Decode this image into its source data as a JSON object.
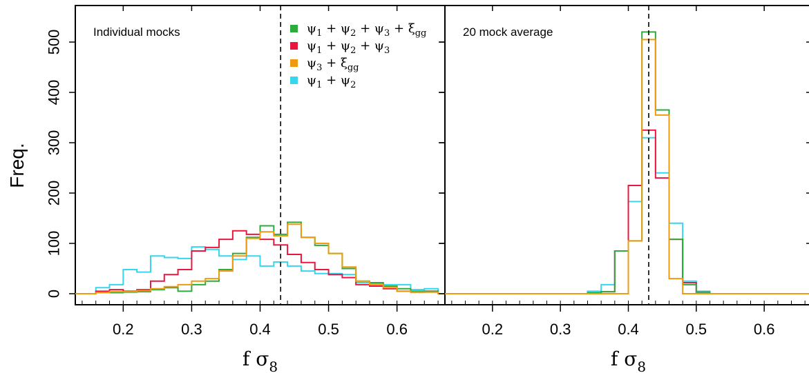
{
  "figure": {
    "ylabel": "Freq.",
    "xlabel_main": "f σ",
    "xlabel_sub": "8"
  },
  "legend": [
    {
      "name": "ψ1 + ψ2 + ψ3 + ξgg",
      "color": "#2eaa3f"
    },
    {
      "name": "ψ1 + ψ2 + ψ3",
      "color": "#e8173e"
    },
    {
      "name": "ψ3 + ξgg",
      "color": "#ef9b10"
    },
    {
      "name": "ψ1 + ψ2",
      "color": "#36d6ee"
    }
  ],
  "chart_data": [
    {
      "type": "histogram",
      "panel_title": "Individual mocks",
      "xlabel": "f σ8",
      "ylabel": "Freq.",
      "xlim": [
        0.13,
        0.67
      ],
      "ylim": [
        0,
        560
      ],
      "x_ticks": [
        0.2,
        0.3,
        0.4,
        0.5,
        0.6
      ],
      "y_ticks": [
        0,
        100,
        200,
        300,
        400,
        500
      ],
      "reference_line": 0.43,
      "bin_edges": [
        0.13,
        0.16,
        0.18,
        0.2,
        0.22,
        0.24,
        0.26,
        0.28,
        0.3,
        0.32,
        0.34,
        0.36,
        0.38,
        0.4,
        0.42,
        0.44,
        0.46,
        0.48,
        0.5,
        0.52,
        0.54,
        0.56,
        0.58,
        0.6,
        0.62,
        0.64,
        0.66,
        0.67
      ],
      "series": [
        {
          "name": "ψ1 + ψ2 + ψ3 + ξgg",
          "color": "#2eaa3f",
          "values": [
            0,
            2,
            2,
            3,
            4,
            8,
            12,
            5,
            18,
            25,
            48,
            80,
            112,
            135,
            118,
            142,
            112,
            96,
            80,
            50,
            25,
            22,
            15,
            10,
            5,
            4,
            0
          ]
        },
        {
          "name": "ψ1 + ψ2 + ψ3",
          "color": "#e8173e",
          "values": [
            0,
            5,
            8,
            5,
            8,
            25,
            38,
            48,
            85,
            92,
            108,
            125,
            118,
            108,
            97,
            78,
            62,
            48,
            38,
            32,
            18,
            15,
            10,
            5,
            3,
            5,
            0
          ]
        },
        {
          "name": "ψ3 + ξgg",
          "color": "#ef9b10",
          "values": [
            0,
            2,
            4,
            4,
            6,
            10,
            14,
            18,
            25,
            30,
            45,
            75,
            110,
            123,
            115,
            138,
            112,
            100,
            80,
            53,
            25,
            18,
            12,
            5,
            3,
            3,
            0
          ]
        },
        {
          "name": "ψ1 + ψ2",
          "color": "#36d6ee",
          "values": [
            0,
            12,
            18,
            48,
            43,
            75,
            72,
            70,
            93,
            88,
            75,
            68,
            75,
            55,
            63,
            55,
            45,
            40,
            40,
            38,
            22,
            20,
            18,
            18,
            8,
            10,
            0
          ]
        }
      ]
    },
    {
      "type": "histogram",
      "panel_title": "20 mock average",
      "xlabel": "f σ8",
      "ylabel": "Freq.",
      "xlim": [
        0.13,
        0.67
      ],
      "ylim": [
        0,
        560
      ],
      "x_ticks": [
        0.2,
        0.3,
        0.4,
        0.5,
        0.6
      ],
      "y_ticks": [
        0,
        100,
        200,
        300,
        400,
        500
      ],
      "reference_line": 0.43,
      "bin_edges": [
        0.13,
        0.34,
        0.36,
        0.38,
        0.4,
        0.42,
        0.44,
        0.46,
        0.48,
        0.5,
        0.52,
        0.67
      ],
      "series": [
        {
          "name": "ψ1 + ψ2 + ψ3 + ξgg",
          "color": "#2eaa3f",
          "values": [
            0,
            2,
            4,
            85,
            105,
            520,
            365,
            108,
            18,
            3,
            0
          ]
        },
        {
          "name": "ψ1 + ψ2 + ψ3",
          "color": "#e8173e",
          "values": [
            0,
            0,
            4,
            85,
            215,
            325,
            230,
            108,
            22,
            3,
            0
          ]
        },
        {
          "name": "ψ3 + ξgg",
          "color": "#ef9b10",
          "values": [
            0,
            0,
            0,
            0,
            105,
            505,
            355,
            30,
            0,
            0,
            0
          ]
        },
        {
          "name": "ψ1 + ψ2",
          "color": "#36d6ee",
          "values": [
            0,
            5,
            18,
            85,
            183,
            310,
            240,
            140,
            25,
            5,
            0
          ]
        }
      ]
    }
  ]
}
